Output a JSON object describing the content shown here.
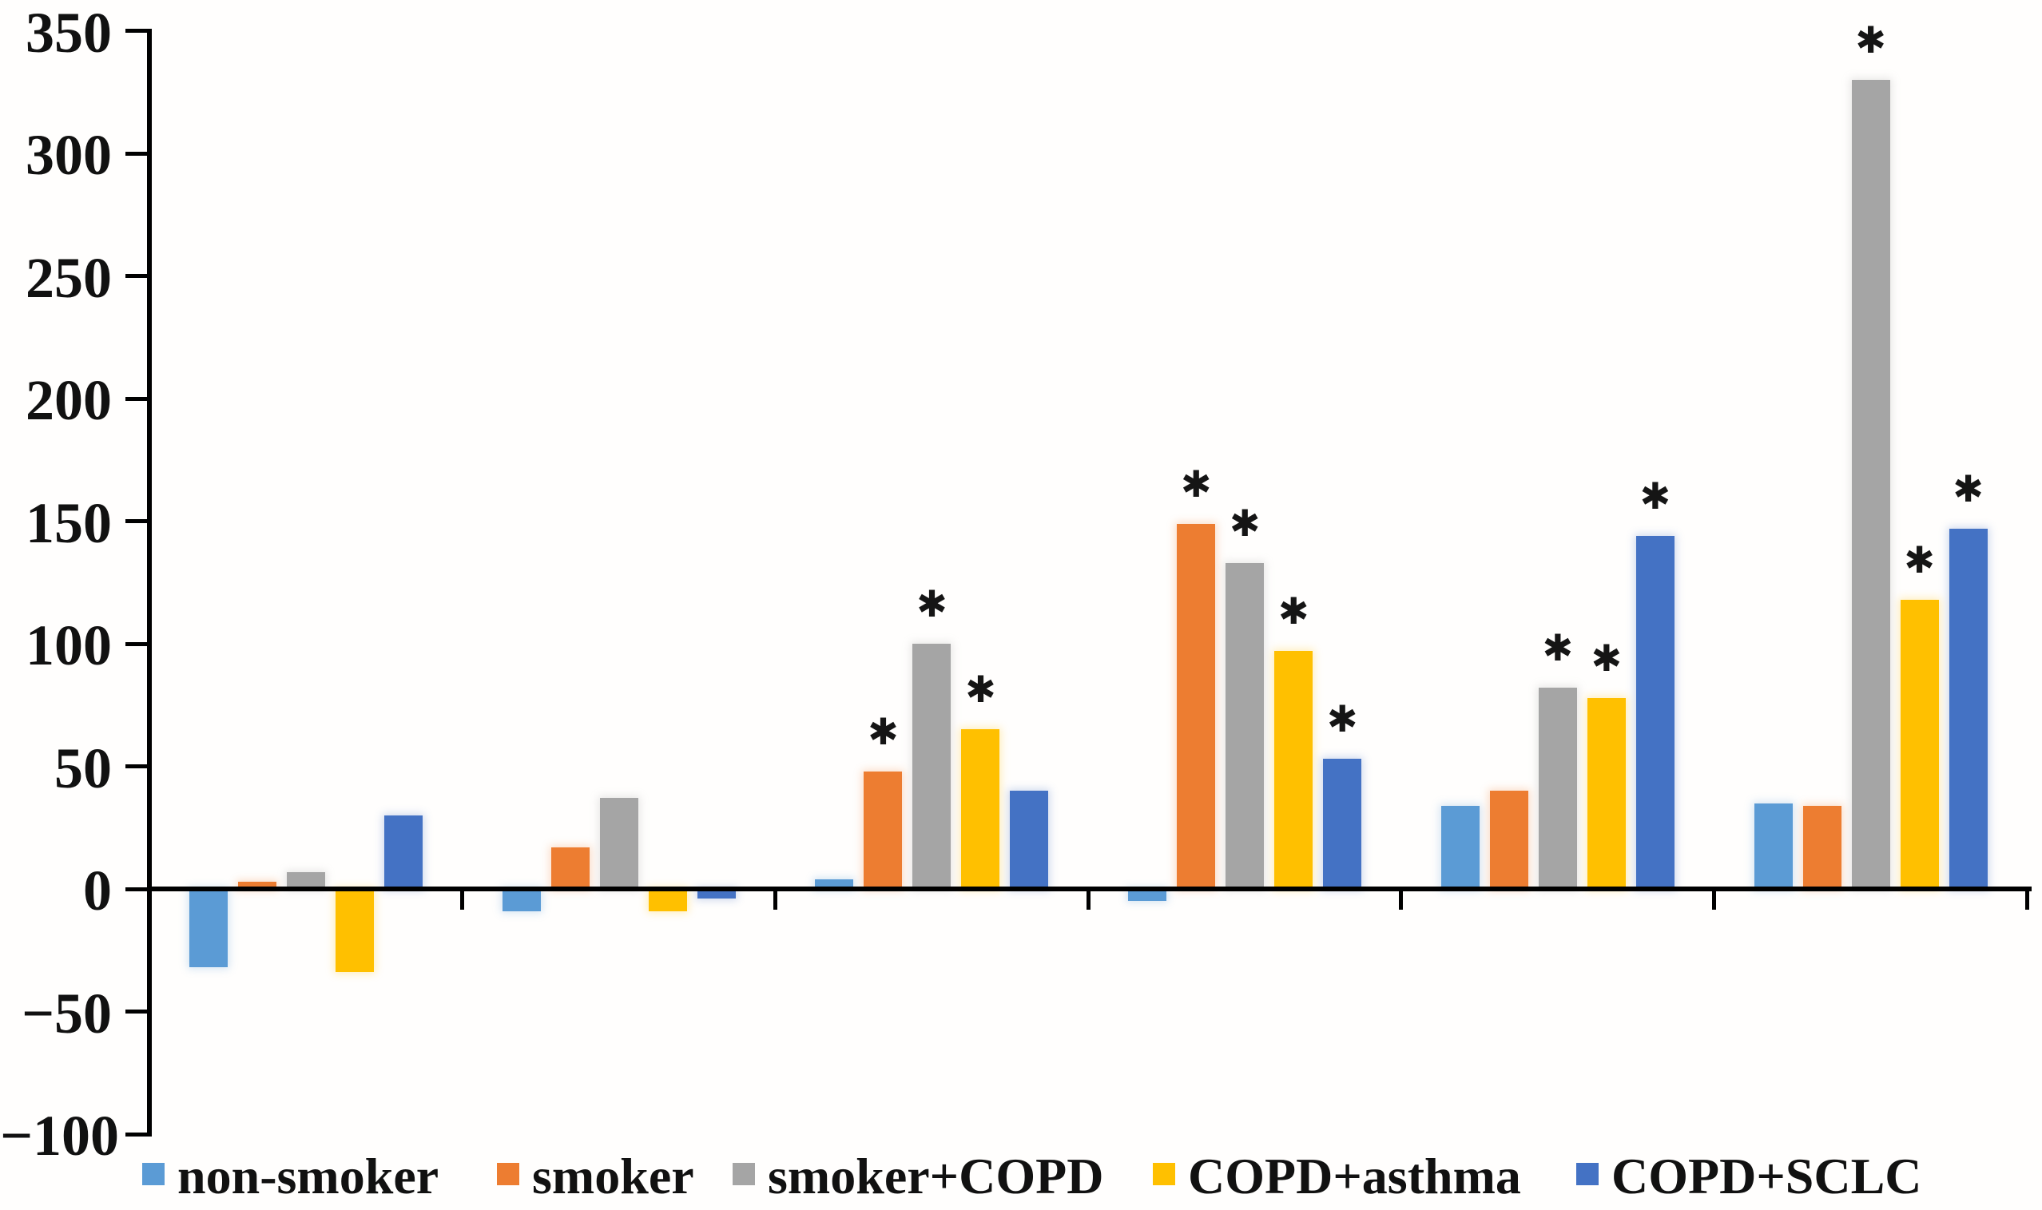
{
  "chart_data": {
    "type": "bar",
    "title": "",
    "x_axis": {
      "labels_visible": false,
      "group_count": 6,
      "categories": [
        "",
        "",
        "",
        "",
        "",
        ""
      ]
    },
    "y_axis": {
      "min": -100,
      "max": 350,
      "tick_interval": 50,
      "ticks": [
        {
          "label": "350",
          "value": 350
        },
        {
          "label": "300",
          "value": 300
        },
        {
          "label": "250",
          "value": 250
        },
        {
          "label": "200",
          "value": 200
        },
        {
          "label": "150",
          "value": 150
        },
        {
          "label": "100",
          "value": 100
        },
        {
          "label": "50",
          "value": 50
        },
        {
          "label": "0",
          "value": 0
        },
        {
          "label": "−50",
          "value": -50
        },
        {
          "label": "−100",
          "value": -100
        }
      ]
    },
    "series": [
      {
        "name": "non-smoker",
        "color": "#5B9BD5",
        "values": [
          -32,
          -9,
          4,
          -5,
          34,
          35
        ],
        "significant": [
          false,
          false,
          false,
          false,
          false,
          false
        ]
      },
      {
        "name": "smoker",
        "color": "#ED7D31",
        "values": [
          3,
          17,
          48,
          149,
          40,
          34
        ],
        "significant": [
          false,
          false,
          true,
          true,
          false,
          false
        ]
      },
      {
        "name": "smoker+COPD",
        "color": "#A5A5A5",
        "values": [
          7,
          37,
          100,
          133,
          82,
          330
        ],
        "significant": [
          false,
          false,
          true,
          true,
          true,
          true
        ]
      },
      {
        "name": "COPD+asthma",
        "color": "#FFC000",
        "values": [
          -34,
          -9,
          65,
          97,
          78,
          118
        ],
        "significant": [
          false,
          false,
          true,
          true,
          true,
          true
        ]
      },
      {
        "name": "COPD+SCLC",
        "color": "#4472C4",
        "values": [
          30,
          -4,
          40,
          53,
          144,
          147
        ],
        "significant": [
          false,
          false,
          false,
          true,
          true,
          true
        ]
      }
    ],
    "significance_marker": "✱",
    "legend": {
      "position": "bottom",
      "items": [
        {
          "label": "non-smoker",
          "color": "#5B9BD5"
        },
        {
          "label": "smoker",
          "color": "#ED7D31"
        },
        {
          "label": "smoker+COPD",
          "color": "#A5A5A5"
        },
        {
          "label": "COPD+asthma",
          "color": "#FFC000"
        },
        {
          "label": "COPD+SCLC",
          "color": "#4472C4"
        }
      ]
    },
    "grid": "off",
    "axis_color": "#000000",
    "text_color": "#111111",
    "background_color": "#ffffff"
  }
}
